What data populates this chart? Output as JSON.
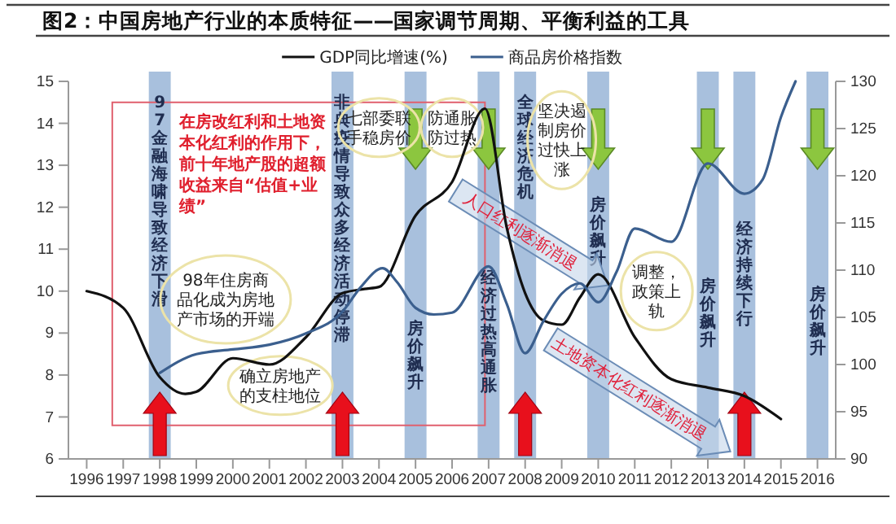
{
  "chart_data": {
    "type": "line",
    "title": "图2：中国房地产行业的本质特征——国家调节周期、平衡利益的工具",
    "xlim": [
      1995.5,
      2016.5
    ],
    "xticks": [
      1996,
      1997,
      1998,
      1999,
      2000,
      2001,
      2002,
      2003,
      2004,
      2005,
      2006,
      2007,
      2008,
      2009,
      2010,
      2011,
      2012,
      2013,
      2014,
      2015,
      2016
    ],
    "ylim": [
      6,
      15
    ],
    "yticks": [
      6,
      7,
      8,
      9,
      10,
      11,
      12,
      13,
      14,
      15
    ],
    "y2lim": [
      90,
      130
    ],
    "y2ticks": [
      90,
      95,
      100,
      105,
      110,
      115,
      120,
      125,
      130
    ],
    "legend": "top",
    "series": [
      {
        "name": "GDP同比增速(%)",
        "color": "#111111",
        "x": [
          1996,
          1997,
          1998,
          1998.7,
          1999,
          2000,
          2001,
          2002,
          2003,
          2003.6,
          2004,
          2005,
          2006,
          2006.9,
          2007.5,
          2008,
          2008.5,
          2009,
          2009.5,
          2010,
          2011,
          2012,
          2013,
          2014,
          2015
        ],
        "values": [
          10.0,
          9.6,
          7.95,
          7.55,
          7.6,
          8.4,
          8.25,
          8.9,
          9.95,
          10.05,
          10.1,
          11.8,
          12.6,
          14.35,
          11.5,
          9.95,
          9.3,
          9.2,
          9.85,
          10.4,
          8.9,
          7.9,
          7.7,
          7.5,
          6.95
        ]
      },
      {
        "name": "商品房价格指数",
        "color": "#3b5f8e",
        "axis": "y2",
        "x": [
          1998,
          1999,
          2000,
          2001,
          2002,
          2003,
          2003.5,
          2004.1,
          2004.5,
          2005,
          2005.5,
          2006,
          2007,
          2007.5,
          2008,
          2008.5,
          2009,
          2009.5,
          2010,
          2010.5,
          2011,
          2012,
          2013,
          2014,
          2014.5,
          2015,
          2015.4
        ],
        "values": [
          99.1,
          101.1,
          101.6,
          102.1,
          103.3,
          105.6,
          108.2,
          110.2,
          108.7,
          106,
          105.3,
          105.5,
          110.4,
          106.4,
          101.2,
          104.6,
          107.5,
          108.6,
          106.6,
          109.8,
          114.4,
          113,
          121.3,
          118.1,
          119.6,
          126.2,
          130
        ]
      }
    ],
    "bands": [
      {
        "axis": "x",
        "from": 1997.7,
        "to": 1998.3,
        "label": "97金融海啸导致经济下滑",
        "color": "#a8c0dd"
      },
      {
        "axis": "x",
        "from": 2002.7,
        "to": 2003.3,
        "label": "非典疫情导致众多经济活动停滞",
        "color": "#a8c0dd"
      },
      {
        "axis": "x",
        "from": 2004.7,
        "to": 2005.3,
        "label": "房价飙升",
        "color": "#a8c0dd"
      },
      {
        "axis": "x",
        "from": 2006.7,
        "to": 2007.3,
        "label": "经济过热高通胀",
        "color": "#a8c0dd"
      },
      {
        "axis": "x",
        "from": 2007.7,
        "to": 2008.3,
        "label": "全球经济危机",
        "color": "#a8c0dd"
      },
      {
        "axis": "x",
        "from": 2009.7,
        "to": 2010.3,
        "label": "房价飙升",
        "color": "#a8c0dd"
      },
      {
        "axis": "x",
        "from": 2012.7,
        "to": 2013.3,
        "label": "房价飙升",
        "color": "#a8c0dd"
      },
      {
        "axis": "x",
        "from": 2013.7,
        "to": 2014.3,
        "label": "经济持续下行",
        "color": "#a8c0dd"
      },
      {
        "axis": "x",
        "from": 2015.7,
        "to": 2016.3,
        "label": "房价飙升",
        "color": "#a8c0dd"
      }
    ],
    "annotations": [
      "在房改红利和土地资本化红利的作用下，前十年地产股的超额收益来自“估值+业绩”",
      "98年住房商品化成为房地产市场的开端",
      "确立房地产的支柱地位",
      "七部委联手稳房价",
      "防通胀防过热",
      "坚决遏制房价过快上涨",
      "调整，政策上轨",
      "人口红利逐渐消退",
      "土地资本化红利逐渐消退"
    ]
  }
}
